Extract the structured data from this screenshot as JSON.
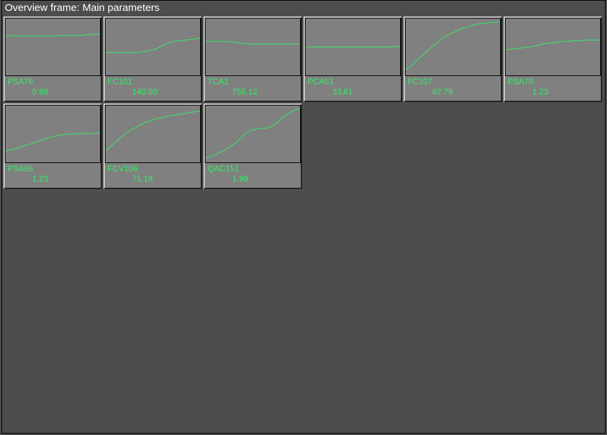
{
  "title": "Overview frame: Main parameters",
  "colors": {
    "background": "#4d4d4d",
    "panel_bg": "#808080",
    "panel_border_light": "#cccccc",
    "panel_border_dark": "#222222",
    "chart_border": "#000000",
    "line_color": "#33ee66",
    "text_color": "#33ee66",
    "title_color": "#ffffff"
  },
  "chart_box": {
    "w": 138,
    "h": 83
  },
  "line_width": 1,
  "panels": [
    {
      "tag": "PSA76",
      "value": "0.98",
      "y": [
        0.3,
        0.3,
        0.31,
        0.31,
        0.31,
        0.31,
        0.31,
        0.31,
        0.31,
        0.31,
        0.3,
        0.3,
        0.3,
        0.3,
        0.3,
        0.3,
        0.29,
        0.28,
        0.28,
        0.28
      ]
    },
    {
      "tag": "FC101",
      "value": "140.00",
      "y": [
        0.6,
        0.6,
        0.6,
        0.6,
        0.6,
        0.6,
        0.6,
        0.59,
        0.58,
        0.56,
        0.54,
        0.5,
        0.45,
        0.42,
        0.4,
        0.39,
        0.38,
        0.37,
        0.36,
        0.35
      ]
    },
    {
      "tag": "TCA1",
      "value": "755.12",
      "y": [
        0.4,
        0.4,
        0.4,
        0.4,
        0.4,
        0.41,
        0.42,
        0.43,
        0.44,
        0.45,
        0.45,
        0.45,
        0.45,
        0.45,
        0.45,
        0.45,
        0.45,
        0.45,
        0.45,
        0.45
      ]
    },
    {
      "tag": "PCA51",
      "value": "33.61",
      "y": [
        0.5,
        0.5,
        0.5,
        0.5,
        0.5,
        0.5,
        0.5,
        0.5,
        0.5,
        0.5,
        0.5,
        0.5,
        0.5,
        0.5,
        0.5,
        0.5,
        0.5,
        0.5,
        0.5,
        0.49
      ]
    },
    {
      "tag": "FC107",
      "value": "87.79",
      "y": [
        0.9,
        0.84,
        0.76,
        0.68,
        0.6,
        0.52,
        0.45,
        0.38,
        0.32,
        0.27,
        0.23,
        0.19,
        0.16,
        0.13,
        0.11,
        0.09,
        0.08,
        0.07,
        0.06,
        0.06
      ]
    },
    {
      "tag": "PSA70",
      "value": "1.23",
      "y": [
        0.55,
        0.54,
        0.53,
        0.52,
        0.51,
        0.5,
        0.48,
        0.46,
        0.44,
        0.43,
        0.42,
        0.41,
        0.4,
        0.4,
        0.39,
        0.39,
        0.38,
        0.38,
        0.38,
        0.38
      ]
    },
    {
      "tag": "PSA85",
      "value": "1.23",
      "y": [
        0.8,
        0.78,
        0.76,
        0.73,
        0.7,
        0.68,
        0.65,
        0.62,
        0.59,
        0.56,
        0.54,
        0.52,
        0.51,
        0.5,
        0.5,
        0.49,
        0.49,
        0.49,
        0.49,
        0.48
      ]
    },
    {
      "tag": "FCV106",
      "value": "71.18",
      "y": [
        0.8,
        0.72,
        0.64,
        0.57,
        0.5,
        0.44,
        0.39,
        0.34,
        0.3,
        0.27,
        0.24,
        0.22,
        0.2,
        0.18,
        0.17,
        0.15,
        0.14,
        0.12,
        0.11,
        0.1
      ]
    },
    {
      "tag": "QAC151",
      "value": "1.99",
      "y": [
        0.92,
        0.9,
        0.86,
        0.82,
        0.78,
        0.72,
        0.66,
        0.58,
        0.5,
        0.44,
        0.42,
        0.4,
        0.4,
        0.38,
        0.33,
        0.26,
        0.18,
        0.12,
        0.08,
        0.05
      ]
    }
  ]
}
